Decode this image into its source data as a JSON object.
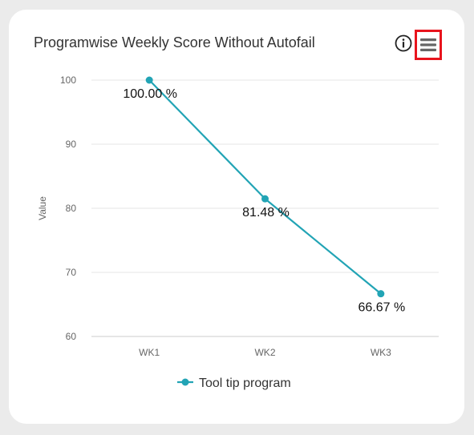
{
  "card": {
    "title": "Programwise Weekly Score Without Autofail",
    "info_icon": "info-circle-icon",
    "menu_icon": "hamburger-menu-icon"
  },
  "chart_data": {
    "type": "line",
    "title": "Programwise Weekly Score Without Autofail",
    "xlabel": "",
    "ylabel": "Value",
    "categories": [
      "WK1",
      "WK2",
      "WK3"
    ],
    "ylim": [
      60,
      100
    ],
    "yticks": [
      60,
      70,
      80,
      90,
      100
    ],
    "grid": true,
    "legend_position": "bottom-center",
    "series": [
      {
        "name": "Tool tip program",
        "values": [
          100.0,
          81.48,
          66.67
        ],
        "data_labels": [
          "100.00 %",
          "81.48 %",
          "66.67 %"
        ],
        "color": "#22a4b5"
      }
    ]
  },
  "colors": {
    "series": "#22a4b5",
    "menu_highlight": "#e8141d",
    "background": "#ebebeb",
    "card": "#ffffff"
  }
}
